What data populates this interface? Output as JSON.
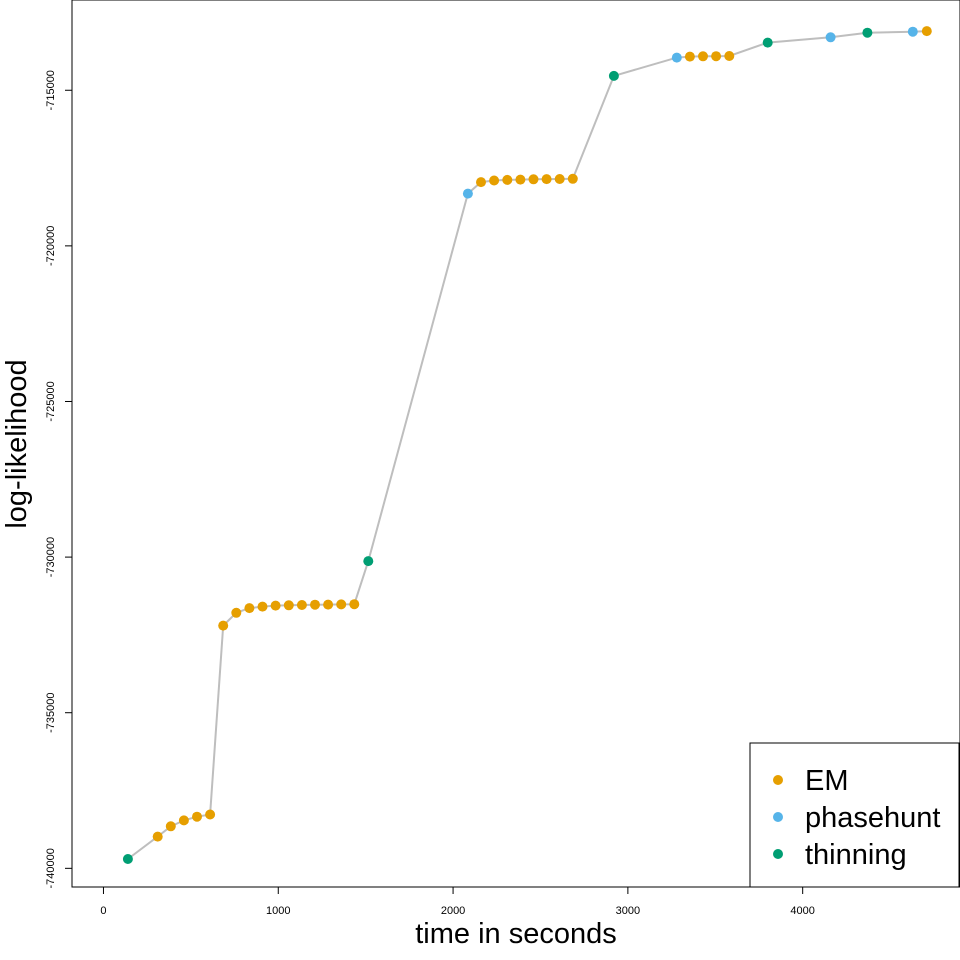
{
  "chart_data": {
    "type": "scatter",
    "xlabel": "time in seconds",
    "ylabel": "log-likelihood",
    "xlim": [
      -180,
      4900
    ],
    "ylim": [
      -740600,
      -712100
    ],
    "x_ticks": [
      0,
      1000,
      2000,
      3000,
      4000
    ],
    "y_ticks": [
      -740000,
      -735000,
      -730000,
      -725000,
      -720000,
      -715000
    ],
    "x_tick_labels": [
      "0",
      "1000",
      "2000",
      "3000",
      "4000"
    ],
    "y_tick_labels": [
      "-740000",
      "-735000",
      "-730000",
      "-725000",
      "-720000",
      "-715000"
    ],
    "legend_position": "bottom-right",
    "line_color": "#bebebe",
    "series": [
      {
        "name": "EM",
        "color": "#e69f00"
      },
      {
        "name": "phasehunt",
        "color": "#56b4e9"
      },
      {
        "name": "thinning",
        "color": "#009e73"
      }
    ],
    "points": [
      {
        "x": 140,
        "y": -739700,
        "s": "thinning"
      },
      {
        "x": 310,
        "y": -738980,
        "s": "EM"
      },
      {
        "x": 385,
        "y": -738650,
        "s": "EM"
      },
      {
        "x": 460,
        "y": -738460,
        "s": "EM"
      },
      {
        "x": 535,
        "y": -738340,
        "s": "EM"
      },
      {
        "x": 610,
        "y": -738270,
        "s": "EM"
      },
      {
        "x": 685,
        "y": -732200,
        "s": "EM"
      },
      {
        "x": 760,
        "y": -731790,
        "s": "EM"
      },
      {
        "x": 835,
        "y": -731640,
        "s": "EM"
      },
      {
        "x": 910,
        "y": -731590,
        "s": "EM"
      },
      {
        "x": 985,
        "y": -731560,
        "s": "EM"
      },
      {
        "x": 1060,
        "y": -731550,
        "s": "EM"
      },
      {
        "x": 1135,
        "y": -731540,
        "s": "EM"
      },
      {
        "x": 1210,
        "y": -731530,
        "s": "EM"
      },
      {
        "x": 1285,
        "y": -731525,
        "s": "EM"
      },
      {
        "x": 1360,
        "y": -731520,
        "s": "EM"
      },
      {
        "x": 1435,
        "y": -731515,
        "s": "EM"
      },
      {
        "x": 1515,
        "y": -730130,
        "s": "thinning"
      },
      {
        "x": 2085,
        "y": -718320,
        "s": "phasehunt"
      },
      {
        "x": 2160,
        "y": -717950,
        "s": "EM"
      },
      {
        "x": 2235,
        "y": -717900,
        "s": "EM"
      },
      {
        "x": 2310,
        "y": -717880,
        "s": "EM"
      },
      {
        "x": 2385,
        "y": -717870,
        "s": "EM"
      },
      {
        "x": 2460,
        "y": -717860,
        "s": "EM"
      },
      {
        "x": 2535,
        "y": -717855,
        "s": "EM"
      },
      {
        "x": 2610,
        "y": -717850,
        "s": "EM"
      },
      {
        "x": 2685,
        "y": -717845,
        "s": "EM"
      },
      {
        "x": 2920,
        "y": -714540,
        "s": "thinning"
      },
      {
        "x": 3280,
        "y": -713950,
        "s": "phasehunt"
      },
      {
        "x": 3355,
        "y": -713920,
        "s": "EM"
      },
      {
        "x": 3430,
        "y": -713910,
        "s": "EM"
      },
      {
        "x": 3505,
        "y": -713905,
        "s": "EM"
      },
      {
        "x": 3580,
        "y": -713900,
        "s": "EM"
      },
      {
        "x": 3800,
        "y": -713470,
        "s": "thinning"
      },
      {
        "x": 4160,
        "y": -713300,
        "s": "phasehunt"
      },
      {
        "x": 4370,
        "y": -713150,
        "s": "thinning"
      },
      {
        "x": 4630,
        "y": -713120,
        "s": "phasehunt"
      },
      {
        "x": 4710,
        "y": -713100,
        "s": "EM"
      }
    ]
  }
}
